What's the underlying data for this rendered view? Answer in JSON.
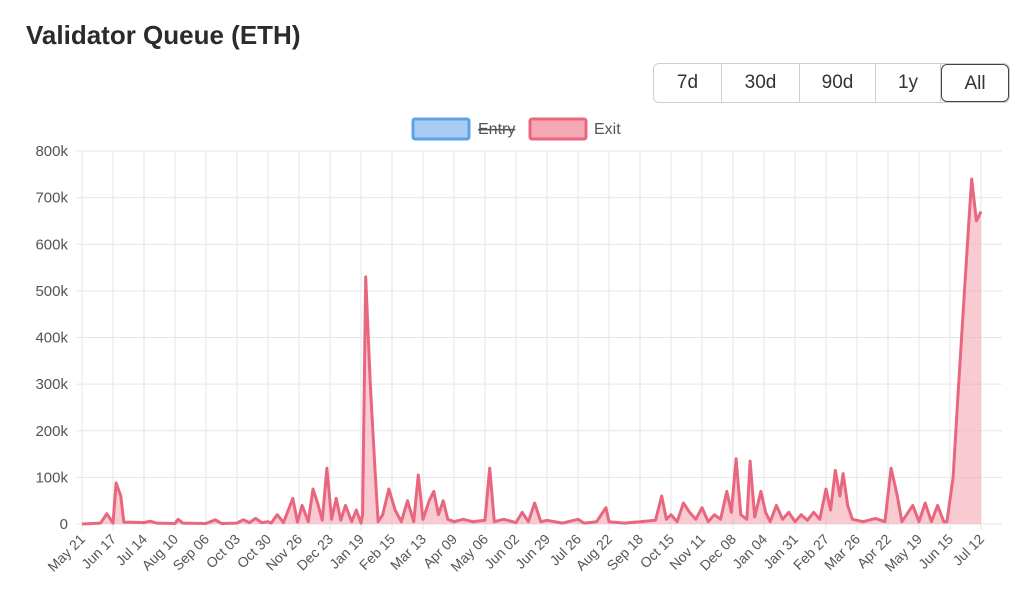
{
  "header": {
    "title": "Validator Queue (ETH)"
  },
  "range_selector": {
    "options": [
      "7d",
      "30d",
      "90d",
      "1y",
      "All"
    ],
    "selected": "All"
  },
  "colors": {
    "entry": "#5aa3e8",
    "entry_fill": "#a9cdf2",
    "exit": "#e8677f",
    "exit_fill": "#f4a8b6",
    "grid": "#e6e6e6"
  },
  "chart_data": {
    "type": "area",
    "legend": {
      "placement": "top-center",
      "entries": [
        {
          "name": "Entry",
          "hidden": true
        },
        {
          "name": "Exit",
          "hidden": false
        }
      ]
    },
    "grid": true,
    "ylim": [
      0,
      800000
    ],
    "y_ticks": [
      "0",
      "100k",
      "200k",
      "300k",
      "400k",
      "500k",
      "600k",
      "700k",
      "800k"
    ],
    "x_tick_labels": [
      "May 21",
      "Jun 17",
      "Jul 14",
      "Aug 10",
      "Sep 06",
      "Oct 03",
      "Oct 30",
      "Nov 26",
      "Dec 23",
      "Jan 19",
      "Feb 15",
      "Mar 13",
      "Apr 09",
      "May 06",
      "Jun 02",
      "Jun 29",
      "Jul 26",
      "Aug 22",
      "Sep 18",
      "Oct 15",
      "Nov 11",
      "Dec 08",
      "Jan 04",
      "Jan 31",
      "Feb 27",
      "Mar 26",
      "Apr 22",
      "May 19",
      "Jun 15",
      "Jul 12"
    ],
    "series": [
      {
        "name": "Exit",
        "points": [
          [
            0,
            0
          ],
          [
            0.6,
            2000
          ],
          [
            0.8,
            22000
          ],
          [
            1.0,
            2000
          ],
          [
            1.1,
            88000
          ],
          [
            1.25,
            60000
          ],
          [
            1.35,
            4000
          ],
          [
            2.0,
            3000
          ],
          [
            2.2,
            6000
          ],
          [
            2.4,
            2000
          ],
          [
            3.0,
            1000
          ],
          [
            3.1,
            10000
          ],
          [
            3.25,
            2000
          ],
          [
            4.0,
            1000
          ],
          [
            4.3,
            9000
          ],
          [
            4.5,
            1000
          ],
          [
            5.0,
            2000
          ],
          [
            5.2,
            9000
          ],
          [
            5.4,
            3000
          ],
          [
            5.6,
            12000
          ],
          [
            5.8,
            3000
          ],
          [
            6.0,
            5000
          ],
          [
            6.1,
            2000
          ],
          [
            6.3,
            20000
          ],
          [
            6.5,
            3000
          ],
          [
            6.8,
            55000
          ],
          [
            6.95,
            4000
          ],
          [
            7.1,
            40000
          ],
          [
            7.3,
            5000
          ],
          [
            7.45,
            75000
          ],
          [
            7.6,
            45000
          ],
          [
            7.75,
            8000
          ],
          [
            7.9,
            120000
          ],
          [
            8.05,
            10000
          ],
          [
            8.2,
            55000
          ],
          [
            8.35,
            8000
          ],
          [
            8.5,
            40000
          ],
          [
            8.7,
            5000
          ],
          [
            8.85,
            30000
          ],
          [
            9.0,
            2000
          ],
          [
            9.05,
            20000
          ],
          [
            9.15,
            530000
          ],
          [
            9.3,
            300000
          ],
          [
            9.45,
            120000
          ],
          [
            9.55,
            5000
          ],
          [
            9.7,
            20000
          ],
          [
            9.9,
            75000
          ],
          [
            10.1,
            30000
          ],
          [
            10.3,
            5000
          ],
          [
            10.5,
            50000
          ],
          [
            10.7,
            5000
          ],
          [
            10.85,
            105000
          ],
          [
            11.0,
            10000
          ],
          [
            11.2,
            50000
          ],
          [
            11.35,
            70000
          ],
          [
            11.5,
            20000
          ],
          [
            11.65,
            50000
          ],
          [
            11.8,
            10000
          ],
          [
            12.0,
            5000
          ],
          [
            12.3,
            10000
          ],
          [
            12.6,
            5000
          ],
          [
            13.0,
            8000
          ],
          [
            13.15,
            120000
          ],
          [
            13.3,
            5000
          ],
          [
            13.6,
            10000
          ],
          [
            14.0,
            3000
          ],
          [
            14.2,
            25000
          ],
          [
            14.4,
            5000
          ],
          [
            14.6,
            45000
          ],
          [
            14.8,
            5000
          ],
          [
            15.0,
            8000
          ],
          [
            15.5,
            2000
          ],
          [
            16.0,
            10000
          ],
          [
            16.2,
            2000
          ],
          [
            16.6,
            5000
          ],
          [
            16.9,
            35000
          ],
          [
            17.0,
            5000
          ],
          [
            17.5,
            2000
          ],
          [
            18.0,
            5000
          ],
          [
            18.5,
            8000
          ],
          [
            18.7,
            60000
          ],
          [
            18.85,
            10000
          ],
          [
            19.0,
            20000
          ],
          [
            19.2,
            5000
          ],
          [
            19.4,
            45000
          ],
          [
            19.6,
            25000
          ],
          [
            19.8,
            10000
          ],
          [
            20.0,
            35000
          ],
          [
            20.2,
            5000
          ],
          [
            20.4,
            20000
          ],
          [
            20.6,
            10000
          ],
          [
            20.8,
            70000
          ],
          [
            20.95,
            25000
          ],
          [
            21.1,
            140000
          ],
          [
            21.25,
            20000
          ],
          [
            21.45,
            10000
          ],
          [
            21.55,
            135000
          ],
          [
            21.7,
            15000
          ],
          [
            21.9,
            70000
          ],
          [
            22.05,
            25000
          ],
          [
            22.2,
            5000
          ],
          [
            22.4,
            40000
          ],
          [
            22.6,
            10000
          ],
          [
            22.8,
            25000
          ],
          [
            23.0,
            5000
          ],
          [
            23.2,
            20000
          ],
          [
            23.4,
            8000
          ],
          [
            23.6,
            25000
          ],
          [
            23.8,
            10000
          ],
          [
            24.0,
            75000
          ],
          [
            24.15,
            30000
          ],
          [
            24.3,
            115000
          ],
          [
            24.45,
            60000
          ],
          [
            24.55,
            108000
          ],
          [
            24.7,
            40000
          ],
          [
            24.85,
            10000
          ],
          [
            25.2,
            5000
          ],
          [
            25.6,
            12000
          ],
          [
            25.9,
            5000
          ],
          [
            26.1,
            120000
          ],
          [
            26.3,
            60000
          ],
          [
            26.45,
            5000
          ],
          [
            26.8,
            40000
          ],
          [
            27.0,
            5000
          ],
          [
            27.2,
            45000
          ],
          [
            27.4,
            5000
          ],
          [
            27.6,
            40000
          ],
          [
            27.8,
            5000
          ],
          [
            27.9,
            5000
          ],
          [
            28.1,
            100000
          ],
          [
            28.25,
            270000
          ],
          [
            28.45,
            480000
          ],
          [
            28.6,
            640000
          ],
          [
            28.7,
            740000
          ],
          [
            28.85,
            650000
          ],
          [
            29.0,
            670000
          ]
        ]
      },
      {
        "name": "Entry",
        "hidden": true,
        "points": []
      }
    ]
  }
}
